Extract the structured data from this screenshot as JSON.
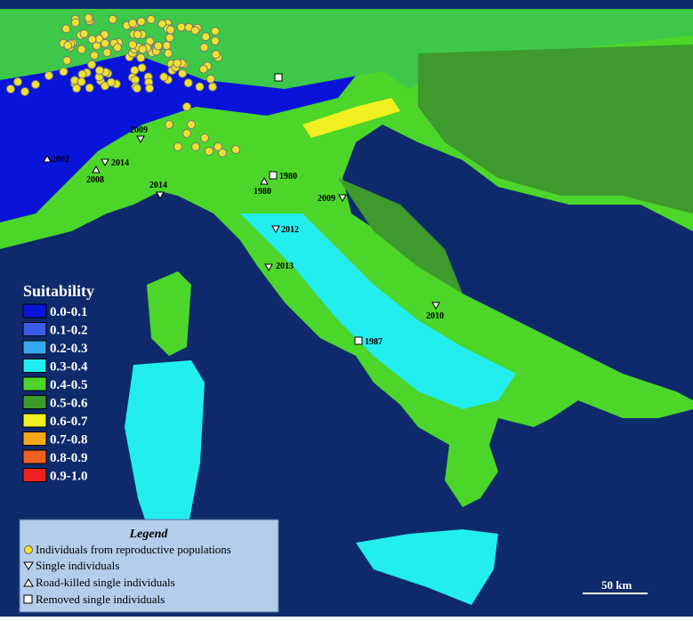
{
  "suitability": {
    "title": "Suitability",
    "classes": [
      {
        "label": "0.0-0.1",
        "color": "#0a14d8"
      },
      {
        "label": "0.1-0.2",
        "color": "#3a5ae8"
      },
      {
        "label": "0.2-0.3",
        "color": "#36a8f0"
      },
      {
        "label": "0.3-0.4",
        "color": "#22eef0"
      },
      {
        "label": "0.4-0.5",
        "color": "#4cd62a"
      },
      {
        "label": "0.5-0.6",
        "color": "#3e9a2c"
      },
      {
        "label": "0.6-0.7",
        "color": "#f0f020"
      },
      {
        "label": "0.7-0.8",
        "color": "#f4a818"
      },
      {
        "label": "0.8-0.9",
        "color": "#f06020"
      },
      {
        "label": "0.9-1.0",
        "color": "#f02020"
      }
    ]
  },
  "legend": {
    "title": "Legend",
    "items": [
      "Individuals from reproductive populations",
      "Single individuals",
      "Road-killed single individuals",
      "Removed single individuals"
    ]
  },
  "records": [
    "2002",
    "2009",
    "2014",
    "2008",
    "2014",
    "1980",
    "1980",
    "2009",
    "2012",
    "2013",
    "2010",
    "1987"
  ],
  "scale_bar": "50 km"
}
